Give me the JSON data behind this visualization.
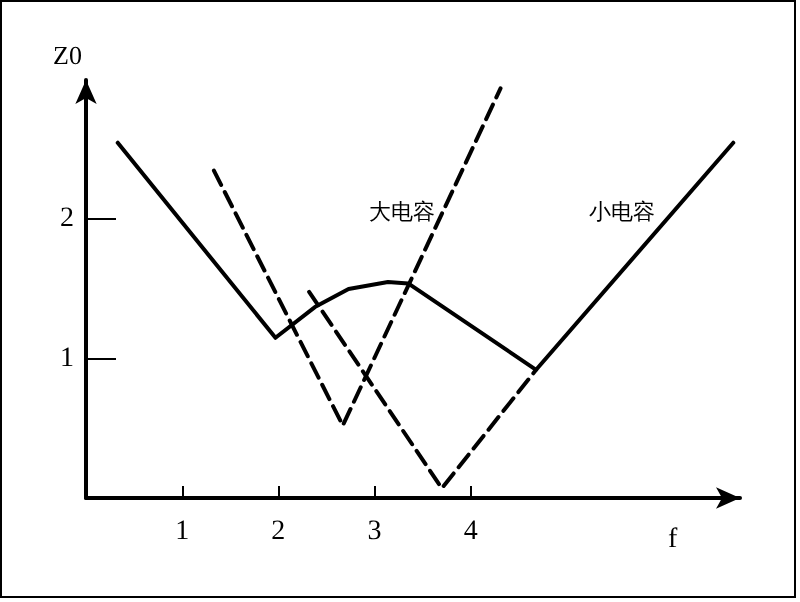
{
  "chart_data": {
    "type": "line",
    "xlabel": "f",
    "ylabel": "Z0",
    "xlim": [
      0,
      6.8
    ],
    "ylim": [
      0,
      3
    ],
    "xticks": [
      1,
      2,
      3,
      4
    ],
    "yticks": [
      1,
      2
    ],
    "grid": false,
    "marker": "none",
    "series": [
      {
        "color": "#000000",
        "line_style": "solid",
        "x": [
          0.33,
          1.97,
          2.38,
          2.73,
          3.14,
          3.35,
          4.68,
          6.73
        ],
        "values": [
          2.55,
          1.15,
          1.37,
          1.5,
          1.55,
          1.54,
          0.92,
          2.55
        ]
      },
      {
        "color": "#000000",
        "line_style": "dashed",
        "x": [
          1.33,
          2.67,
          4.31
        ],
        "values": [
          2.35,
          0.52,
          2.94
        ]
      },
      {
        "color": "#000000",
        "line_style": "dashed",
        "x": [
          2.32,
          3.7,
          4.68
        ],
        "values": [
          1.48,
          0.07,
          0.92
        ]
      }
    ],
    "annotations": [
      "大电容",
      "小电容"
    ]
  }
}
